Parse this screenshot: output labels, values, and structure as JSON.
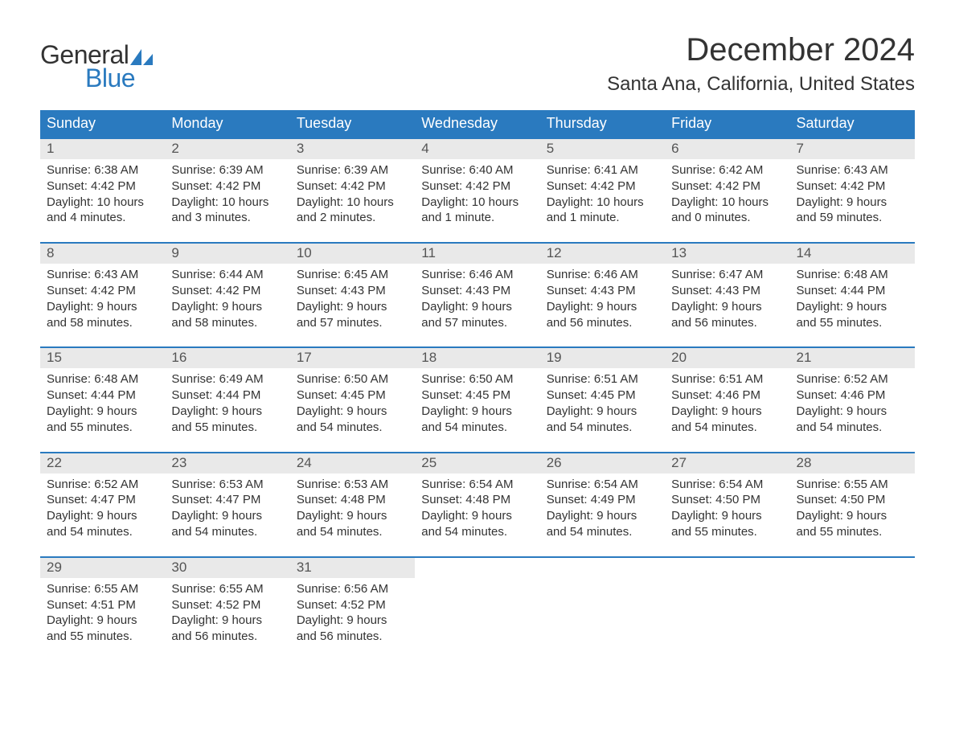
{
  "branding": {
    "logo_text1": "General",
    "logo_text2": "Blue",
    "logo_color_text": "#333333",
    "logo_color_accent": "#2a7abf"
  },
  "title": "December 2024",
  "location": "Santa Ana, California, United States",
  "style": {
    "header_bg": "#2a7abf",
    "header_text": "#ffffff",
    "daynum_bg": "#e9e9e9",
    "week_border": "#2a7abf",
    "body_text": "#333333",
    "title_fontsize": 40,
    "location_fontsize": 24,
    "dayhead_fontsize": 18,
    "cell_fontsize": 15,
    "page_bg": "#ffffff"
  },
  "day_headers": [
    "Sunday",
    "Monday",
    "Tuesday",
    "Wednesday",
    "Thursday",
    "Friday",
    "Saturday"
  ],
  "weeks": [
    [
      {
        "n": "1",
        "sunrise": "6:38 AM",
        "sunset": "4:42 PM",
        "daylight": "10 hours and 4 minutes."
      },
      {
        "n": "2",
        "sunrise": "6:39 AM",
        "sunset": "4:42 PM",
        "daylight": "10 hours and 3 minutes."
      },
      {
        "n": "3",
        "sunrise": "6:39 AM",
        "sunset": "4:42 PM",
        "daylight": "10 hours and 2 minutes."
      },
      {
        "n": "4",
        "sunrise": "6:40 AM",
        "sunset": "4:42 PM",
        "daylight": "10 hours and 1 minute."
      },
      {
        "n": "5",
        "sunrise": "6:41 AM",
        "sunset": "4:42 PM",
        "daylight": "10 hours and 1 minute."
      },
      {
        "n": "6",
        "sunrise": "6:42 AM",
        "sunset": "4:42 PM",
        "daylight": "10 hours and 0 minutes."
      },
      {
        "n": "7",
        "sunrise": "6:43 AM",
        "sunset": "4:42 PM",
        "daylight": "9 hours and 59 minutes."
      }
    ],
    [
      {
        "n": "8",
        "sunrise": "6:43 AM",
        "sunset": "4:42 PM",
        "daylight": "9 hours and 58 minutes."
      },
      {
        "n": "9",
        "sunrise": "6:44 AM",
        "sunset": "4:42 PM",
        "daylight": "9 hours and 58 minutes."
      },
      {
        "n": "10",
        "sunrise": "6:45 AM",
        "sunset": "4:43 PM",
        "daylight": "9 hours and 57 minutes."
      },
      {
        "n": "11",
        "sunrise": "6:46 AM",
        "sunset": "4:43 PM",
        "daylight": "9 hours and 57 minutes."
      },
      {
        "n": "12",
        "sunrise": "6:46 AM",
        "sunset": "4:43 PM",
        "daylight": "9 hours and 56 minutes."
      },
      {
        "n": "13",
        "sunrise": "6:47 AM",
        "sunset": "4:43 PM",
        "daylight": "9 hours and 56 minutes."
      },
      {
        "n": "14",
        "sunrise": "6:48 AM",
        "sunset": "4:44 PM",
        "daylight": "9 hours and 55 minutes."
      }
    ],
    [
      {
        "n": "15",
        "sunrise": "6:48 AM",
        "sunset": "4:44 PM",
        "daylight": "9 hours and 55 minutes."
      },
      {
        "n": "16",
        "sunrise": "6:49 AM",
        "sunset": "4:44 PM",
        "daylight": "9 hours and 55 minutes."
      },
      {
        "n": "17",
        "sunrise": "6:50 AM",
        "sunset": "4:45 PM",
        "daylight": "9 hours and 54 minutes."
      },
      {
        "n": "18",
        "sunrise": "6:50 AM",
        "sunset": "4:45 PM",
        "daylight": "9 hours and 54 minutes."
      },
      {
        "n": "19",
        "sunrise": "6:51 AM",
        "sunset": "4:45 PM",
        "daylight": "9 hours and 54 minutes."
      },
      {
        "n": "20",
        "sunrise": "6:51 AM",
        "sunset": "4:46 PM",
        "daylight": "9 hours and 54 minutes."
      },
      {
        "n": "21",
        "sunrise": "6:52 AM",
        "sunset": "4:46 PM",
        "daylight": "9 hours and 54 minutes."
      }
    ],
    [
      {
        "n": "22",
        "sunrise": "6:52 AM",
        "sunset": "4:47 PM",
        "daylight": "9 hours and 54 minutes."
      },
      {
        "n": "23",
        "sunrise": "6:53 AM",
        "sunset": "4:47 PM",
        "daylight": "9 hours and 54 minutes."
      },
      {
        "n": "24",
        "sunrise": "6:53 AM",
        "sunset": "4:48 PM",
        "daylight": "9 hours and 54 minutes."
      },
      {
        "n": "25",
        "sunrise": "6:54 AM",
        "sunset": "4:48 PM",
        "daylight": "9 hours and 54 minutes."
      },
      {
        "n": "26",
        "sunrise": "6:54 AM",
        "sunset": "4:49 PM",
        "daylight": "9 hours and 54 minutes."
      },
      {
        "n": "27",
        "sunrise": "6:54 AM",
        "sunset": "4:50 PM",
        "daylight": "9 hours and 55 minutes."
      },
      {
        "n": "28",
        "sunrise": "6:55 AM",
        "sunset": "4:50 PM",
        "daylight": "9 hours and 55 minutes."
      }
    ],
    [
      {
        "n": "29",
        "sunrise": "6:55 AM",
        "sunset": "4:51 PM",
        "daylight": "9 hours and 55 minutes."
      },
      {
        "n": "30",
        "sunrise": "6:55 AM",
        "sunset": "4:52 PM",
        "daylight": "9 hours and 56 minutes."
      },
      {
        "n": "31",
        "sunrise": "6:56 AM",
        "sunset": "4:52 PM",
        "daylight": "9 hours and 56 minutes."
      },
      null,
      null,
      null,
      null
    ]
  ],
  "labels": {
    "sunrise": "Sunrise:",
    "sunset": "Sunset:",
    "daylight": "Daylight:"
  }
}
